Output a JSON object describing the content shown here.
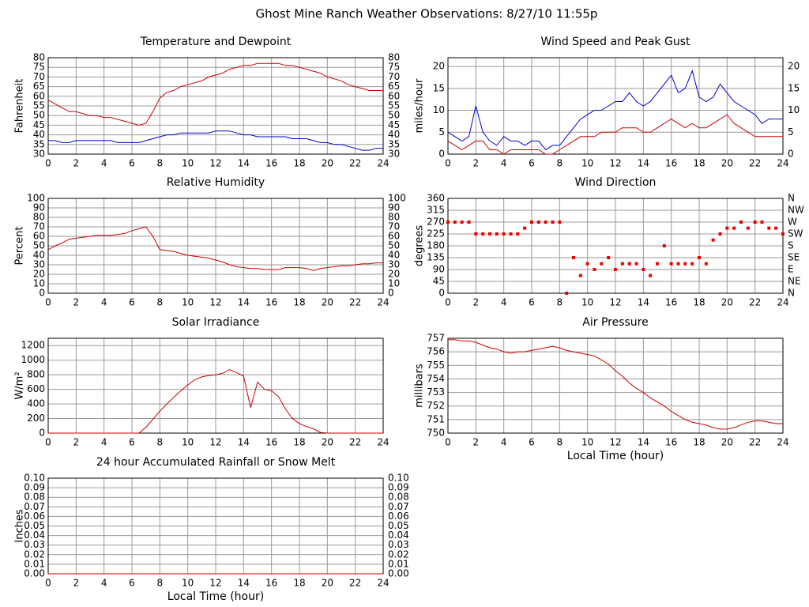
{
  "title": "Ghost Mine Ranch Weather Observations: 8/27/10 11:55p",
  "chart_data": [
    {
      "type": "line",
      "title": "Temperature and Dewpoint",
      "ylabel": "Fahrenheit",
      "mirror_yticks": true,
      "grid": true,
      "x": [
        0,
        0.5,
        1,
        1.5,
        2,
        2.5,
        3,
        3.5,
        4,
        4.5,
        5,
        5.5,
        6,
        6.5,
        7,
        7.5,
        8,
        8.5,
        9,
        9.5,
        10,
        10.5,
        11,
        11.5,
        12,
        12.5,
        13,
        13.5,
        14,
        14.5,
        15,
        15.5,
        16,
        16.5,
        17,
        17.5,
        18,
        18.5,
        19,
        19.5,
        20,
        20.5,
        21,
        21.5,
        22,
        22.5,
        23,
        23.5,
        24
      ],
      "series": [
        {
          "color": "#cc0000",
          "values": [
            58,
            56,
            54,
            52,
            52,
            51,
            50,
            50,
            49,
            49,
            48,
            47,
            46,
            45,
            46,
            52,
            59,
            62,
            63,
            65,
            66,
            67,
            68,
            70,
            71,
            72,
            74,
            75,
            76,
            76,
            77,
            77,
            77,
            77,
            76,
            76,
            75,
            74,
            73,
            72,
            70,
            69,
            68,
            66,
            65,
            64,
            63,
            63,
            63
          ]
        },
        {
          "color": "#0000cc",
          "values": [
            37,
            37,
            36,
            36,
            37,
            37,
            37,
            37,
            37,
            37,
            36,
            36,
            36,
            36,
            37,
            38,
            39,
            40,
            40,
            41,
            41,
            41,
            41,
            41,
            42,
            42,
            42,
            41,
            40,
            40,
            39,
            39,
            39,
            39,
            39,
            38,
            38,
            38,
            37,
            36,
            36,
            35,
            35,
            34,
            33,
            32,
            32,
            33,
            33
          ]
        }
      ],
      "xlim": [
        0,
        24
      ],
      "xticks": [
        0,
        2,
        4,
        6,
        8,
        10,
        12,
        14,
        16,
        18,
        20,
        22,
        24
      ],
      "ylim": [
        30,
        80
      ],
      "yticks": [
        30,
        35,
        40,
        45,
        50,
        55,
        60,
        65,
        70,
        75,
        80
      ]
    },
    {
      "type": "line",
      "title": "Wind Speed and Peak Gust",
      "ylabel": "miles/hour",
      "mirror_yticks": true,
      "grid": true,
      "x": [
        0,
        0.5,
        1,
        1.5,
        2,
        2.5,
        3,
        3.5,
        4,
        4.5,
        5,
        5.5,
        6,
        6.5,
        7,
        7.5,
        8,
        8.5,
        9,
        9.5,
        10,
        10.5,
        11,
        11.5,
        12,
        12.5,
        13,
        13.5,
        14,
        14.5,
        15,
        15.5,
        16,
        16.5,
        17,
        17.5,
        18,
        18.5,
        19,
        19.5,
        20,
        20.5,
        21,
        21.5,
        22,
        22.5,
        23,
        23.5,
        24
      ],
      "series": [
        {
          "color": "#0000cc",
          "values": [
            5,
            4,
            3,
            4,
            11,
            5,
            3,
            2,
            4,
            3,
            3,
            2,
            3,
            3,
            1,
            2,
            2,
            4,
            6,
            8,
            9,
            10,
            10,
            11,
            12,
            12,
            14,
            12,
            11,
            12,
            14,
            16,
            18,
            14,
            15,
            19,
            13,
            12,
            13,
            16,
            14,
            12,
            11,
            10,
            9,
            7,
            8,
            8,
            8
          ]
        },
        {
          "color": "#cc0000",
          "values": [
            3,
            2,
            1,
            2,
            3,
            3,
            1,
            1,
            0,
            1,
            1,
            1,
            1,
            1,
            0,
            0,
            1,
            2,
            3,
            4,
            4,
            4,
            5,
            5,
            5,
            6,
            6,
            6,
            5,
            5,
            6,
            7,
            8,
            7,
            6,
            7,
            6,
            6,
            7,
            8,
            9,
            7,
            6,
            5,
            4,
            4,
            4,
            4,
            4
          ]
        }
      ],
      "xlim": [
        0,
        24
      ],
      "xticks": [
        0,
        2,
        4,
        6,
        8,
        10,
        12,
        14,
        16,
        18,
        20,
        22,
        24
      ],
      "ylim": [
        0,
        22
      ],
      "yticks": [
        0,
        5,
        10,
        15,
        20
      ]
    },
    {
      "type": "line",
      "title": "Relative Humidity",
      "ylabel": "Percent",
      "mirror_yticks": true,
      "grid": true,
      "x": [
        0,
        0.5,
        1,
        1.5,
        2,
        2.5,
        3,
        3.5,
        4,
        4.5,
        5,
        5.5,
        6,
        6.5,
        7,
        7.5,
        8,
        8.5,
        9,
        9.5,
        10,
        10.5,
        11,
        11.5,
        12,
        12.5,
        13,
        13.5,
        14,
        14.5,
        15,
        15.5,
        16,
        16.5,
        17,
        17.5,
        18,
        18.5,
        19,
        19.5,
        20,
        20.5,
        21,
        21.5,
        22,
        22.5,
        23,
        23.5,
        24
      ],
      "series": [
        {
          "color": "#cc0000",
          "values": [
            46,
            50,
            53,
            57,
            58,
            59,
            60,
            61,
            61,
            61,
            62,
            63,
            66,
            68,
            70,
            60,
            46,
            45,
            44,
            42,
            40,
            39,
            38,
            37,
            35,
            33,
            30,
            28,
            27,
            26,
            26,
            25,
            25,
            25,
            27,
            27,
            27,
            26,
            24,
            26,
            27,
            28,
            29,
            29,
            30,
            31,
            31,
            32,
            32
          ]
        }
      ],
      "xlim": [
        0,
        24
      ],
      "xticks": [
        0,
        2,
        4,
        6,
        8,
        10,
        12,
        14,
        16,
        18,
        20,
        22,
        24
      ],
      "ylim": [
        0,
        100
      ],
      "yticks": [
        0,
        10,
        20,
        30,
        40,
        50,
        60,
        70,
        80,
        90,
        100
      ]
    },
    {
      "type": "scatter",
      "title": "Wind Direction",
      "ylabel": "degrees",
      "grid": true,
      "x": [
        0,
        0.5,
        1,
        1.5,
        2,
        2.5,
        3,
        3.5,
        4,
        4.5,
        5,
        5.5,
        6,
        6.5,
        7,
        7.5,
        8,
        8.5,
        9,
        9.5,
        10,
        10.5,
        11,
        11.5,
        12,
        12.5,
        13,
        13.5,
        14,
        14.5,
        15,
        15.5,
        16,
        16.5,
        17,
        17.5,
        18,
        18.5,
        19,
        19.5,
        20,
        20.5,
        21,
        21.5,
        22,
        22.5,
        23,
        23.5,
        24
      ],
      "series": [
        {
          "color": "#ee0000",
          "values": [
            270,
            270,
            270,
            270,
            225,
            225,
            225,
            225,
            225,
            225,
            225,
            247,
            270,
            270,
            270,
            270,
            270,
            0,
            135,
            67,
            112,
            90,
            112,
            135,
            90,
            112,
            112,
            112,
            90,
            67,
            112,
            180,
            112,
            112,
            112,
            112,
            135,
            112,
            202,
            225,
            247,
            247,
            270,
            247,
            270,
            270,
            247,
            247,
            225
          ]
        }
      ],
      "xlim": [
        0,
        24
      ],
      "xticks": [
        0,
        2,
        4,
        6,
        8,
        10,
        12,
        14,
        16,
        18,
        20,
        22,
        24
      ],
      "ylim": [
        0,
        360
      ],
      "yticks": [
        0,
        45,
        90,
        135,
        180,
        225,
        270,
        315,
        360
      ],
      "y2lim": [
        0,
        360
      ],
      "y2ticks": [
        {
          "value": 0,
          "label": "N"
        },
        {
          "value": 45,
          "label": "NE"
        },
        {
          "value": 90,
          "label": "E"
        },
        {
          "value": 135,
          "label": "SE"
        },
        {
          "value": 180,
          "label": "S"
        },
        {
          "value": 225,
          "label": "SW"
        },
        {
          "value": 270,
          "label": "W"
        },
        {
          "value": 315,
          "label": "NW"
        },
        {
          "value": 360,
          "label": "N"
        }
      ]
    },
    {
      "type": "line",
      "title": "Solar Irradiance",
      "ylabel": "W/m²",
      "grid": true,
      "x": [
        0,
        0.5,
        1,
        1.5,
        2,
        2.5,
        3,
        3.5,
        4,
        4.5,
        5,
        5.5,
        6,
        6.5,
        7,
        7.5,
        8,
        8.5,
        9,
        9.5,
        10,
        10.5,
        11,
        11.5,
        12,
        12.5,
        13,
        13.5,
        14,
        14.5,
        15,
        15.5,
        16,
        16.5,
        17,
        17.5,
        18,
        18.5,
        19,
        19.5,
        20,
        20.5,
        21,
        21.5,
        22,
        22.5,
        23,
        23.5,
        24
      ],
      "series": [
        {
          "color": "#cc0000",
          "values": [
            0,
            0,
            0,
            0,
            0,
            0,
            0,
            0,
            0,
            0,
            0,
            0,
            0,
            0,
            80,
            190,
            300,
            400,
            490,
            580,
            660,
            730,
            770,
            790,
            800,
            820,
            870,
            830,
            780,
            350,
            700,
            600,
            580,
            500,
            330,
            200,
            130,
            90,
            60,
            10,
            0,
            0,
            0,
            0,
            0,
            0,
            0,
            0,
            0
          ]
        }
      ],
      "xlim": [
        0,
        24
      ],
      "xticks": [
        0,
        2,
        4,
        6,
        8,
        10,
        12,
        14,
        16,
        18,
        20,
        22,
        24
      ],
      "ylim": [
        0,
        1300
      ],
      "yticks": [
        0,
        200,
        400,
        600,
        800,
        1000,
        1200
      ]
    },
    {
      "type": "line",
      "title": "Air Pressure",
      "ylabel": "millibars",
      "xlabel": "Local Time (hour)",
      "grid": true,
      "x": [
        0,
        0.5,
        1,
        1.5,
        2,
        2.5,
        3,
        3.5,
        4,
        4.5,
        5,
        5.5,
        6,
        6.5,
        7,
        7.5,
        8,
        8.5,
        9,
        9.5,
        10,
        10.5,
        11,
        11.5,
        12,
        12.5,
        13,
        13.5,
        14,
        14.5,
        15,
        15.5,
        16,
        16.5,
        17,
        17.5,
        18,
        18.5,
        19,
        19.5,
        20,
        20.5,
        21,
        21.5,
        22,
        22.5,
        23,
        23.5,
        24
      ],
      "series": [
        {
          "color": "#cc0000",
          "values": [
            756.9,
            756.9,
            756.8,
            756.8,
            756.7,
            756.5,
            756.3,
            756.2,
            756.0,
            755.9,
            756.0,
            756.0,
            756.1,
            756.2,
            756.3,
            756.4,
            756.3,
            756.1,
            756.0,
            755.9,
            755.8,
            755.7,
            755.4,
            755.1,
            754.6,
            754.2,
            753.7,
            753.3,
            753.0,
            752.6,
            752.3,
            752.0,
            751.6,
            751.3,
            751.0,
            750.8,
            750.7,
            750.6,
            750.4,
            750.3,
            750.3,
            750.4,
            750.6,
            750.8,
            750.9,
            750.9,
            750.8,
            750.7,
            750.7
          ]
        }
      ],
      "xlim": [
        0,
        24
      ],
      "xticks": [
        0,
        2,
        4,
        6,
        8,
        10,
        12,
        14,
        16,
        18,
        20,
        22,
        24
      ],
      "ylim": [
        750,
        757
      ],
      "yticks": [
        750,
        751,
        752,
        753,
        754,
        755,
        756,
        757
      ]
    },
    {
      "type": "line",
      "title": "24 hour Accumulated Rainfall or Snow Melt",
      "ylabel": "Inches",
      "xlabel": "Local Time (hour)",
      "mirror_yticks": true,
      "grid": true,
      "x": [
        0,
        24
      ],
      "series": [
        {
          "color": "#cc0000",
          "values": [
            0,
            0
          ]
        }
      ],
      "xlim": [
        0,
        24
      ],
      "xticks": [
        0,
        2,
        4,
        6,
        8,
        10,
        12,
        14,
        16,
        18,
        20,
        22,
        24
      ],
      "ylim": [
        0,
        0.1
      ],
      "yticks": [
        {
          "value": 0,
          "label": "0.00"
        },
        {
          "value": 0.01,
          "label": "0.01"
        },
        {
          "value": 0.02,
          "label": "0.02"
        },
        {
          "value": 0.03,
          "label": "0.03"
        },
        {
          "value": 0.04,
          "label": "0.04"
        },
        {
          "value": 0.05,
          "label": "0.05"
        },
        {
          "value": 0.06,
          "label": "0.06"
        },
        {
          "value": 0.07,
          "label": "0.07"
        },
        {
          "value": 0.08,
          "label": "0.08"
        },
        {
          "value": 0.09,
          "label": "0.09"
        },
        {
          "value": 0.1,
          "label": "0.10"
        }
      ]
    }
  ]
}
